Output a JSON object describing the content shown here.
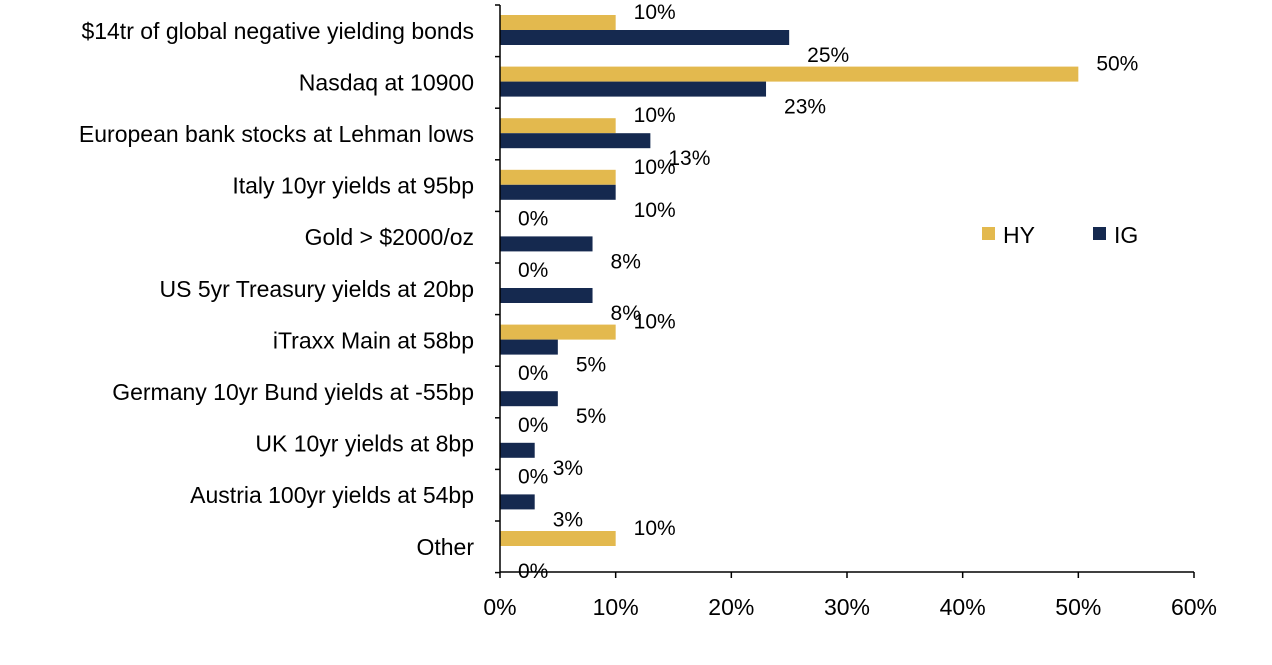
{
  "chart_data": {
    "type": "bar",
    "orientation": "horizontal",
    "categories": [
      "$14tr of global negative yielding bonds",
      "Nasdaq at 10900",
      "European bank stocks at Lehman lows",
      "Italy 10yr yields at 95bp",
      "Gold > $2000/oz",
      "US 5yr Treasury yields at 20bp",
      "iTraxx Main at 58bp",
      "Germany 10yr Bund yields at -55bp",
      "UK 10yr yields at 8bp",
      "Austria 100yr yields at 54bp",
      "Other"
    ],
    "series": [
      {
        "name": "HY",
        "color": "#E3B94E",
        "values": [
          10,
          50,
          10,
          10,
          0,
          0,
          10,
          0,
          0,
          0,
          10
        ],
        "labels": [
          "10%",
          "50%",
          "10%",
          "10%",
          "0%",
          "0%",
          "10%",
          "0%",
          "0%",
          "0%",
          "10%"
        ]
      },
      {
        "name": "IG",
        "color": "#15294F",
        "values": [
          25,
          23,
          13,
          10,
          8,
          8,
          5,
          5,
          3,
          3,
          0
        ],
        "labels": [
          "25%",
          "23%",
          "13%",
          "10%",
          "8%",
          "8%",
          "5%",
          "5%",
          "3%",
          "3%",
          "0%"
        ]
      }
    ],
    "xlim": [
      0,
      60
    ],
    "xticks": [
      0,
      10,
      20,
      30,
      40,
      50,
      60
    ],
    "xtick_labels": [
      "0%",
      "10%",
      "20%",
      "30%",
      "40%",
      "50%",
      "60%"
    ],
    "legend_position": "right",
    "grid": false
  }
}
